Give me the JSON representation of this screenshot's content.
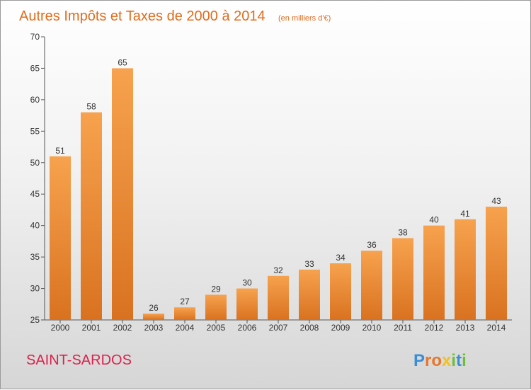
{
  "chart_data": {
    "type": "bar",
    "title": "Autres Impôts et Taxes de 2000 à 2014",
    "subtitle": "(en milliers d'€)",
    "categories": [
      "2000",
      "2001",
      "2002",
      "2003",
      "2004",
      "2005",
      "2006",
      "2007",
      "2008",
      "2009",
      "2010",
      "2011",
      "2012",
      "2013",
      "2014"
    ],
    "values": [
      51,
      58,
      65,
      26,
      27,
      29,
      30,
      32,
      33,
      34,
      36,
      38,
      40,
      41,
      43
    ],
    "ylim": [
      25,
      70
    ],
    "yticks": [
      25,
      30,
      35,
      40,
      45,
      50,
      55,
      60,
      65,
      70
    ],
    "grid": false,
    "colors": {
      "bar_light": "#f7a24e",
      "bar_dark": "#d97220",
      "accent": "#e06c1c"
    }
  },
  "footer": {
    "commune": "SAINT-SARDOS",
    "commune_color": "#d9234d",
    "logo_text": "Proxiti",
    "logo_letters": [
      {
        "ch": "P",
        "color": "#3b8ed6"
      },
      {
        "ch": "r",
        "color": "#e8762a"
      },
      {
        "ch": "o",
        "color": "#e8762a"
      },
      {
        "ch": "x",
        "color": "#f2c21b"
      },
      {
        "ch": "i",
        "color": "#6bbf3a"
      },
      {
        "ch": "t",
        "color": "#3b8ed6"
      },
      {
        "ch": "i",
        "color": "#6bbf3a"
      }
    ]
  }
}
